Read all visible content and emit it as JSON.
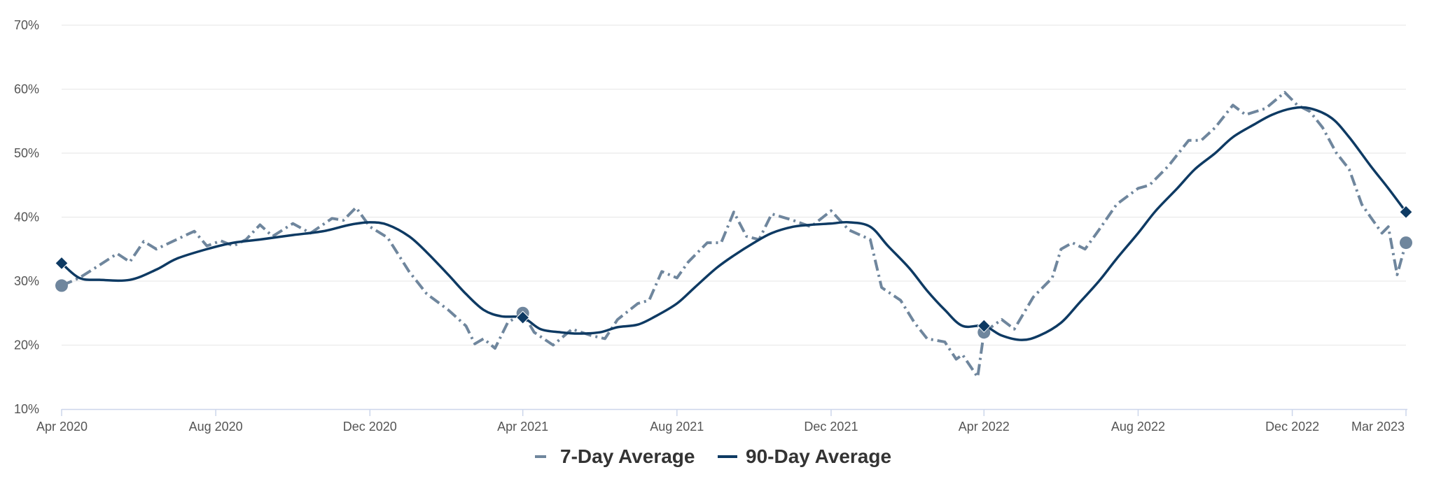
{
  "chart_data": {
    "type": "line",
    "title": "",
    "xlabel": "",
    "ylabel": "",
    "y_unit": "%",
    "ylim": [
      10,
      70
    ],
    "y_ticks": [
      {
        "value": 10,
        "label": "10%"
      },
      {
        "value": 20,
        "label": "20%"
      },
      {
        "value": 30,
        "label": "30%"
      },
      {
        "value": 40,
        "label": "40%"
      },
      {
        "value": 50,
        "label": "50%"
      },
      {
        "value": 60,
        "label": "60%"
      },
      {
        "value": 70,
        "label": "70%"
      }
    ],
    "xlim": [
      "2020-04-01",
      "2023-03-01"
    ],
    "x_ticks": [
      {
        "value": "2020-04-01",
        "label": "Apr 2020"
      },
      {
        "value": "2020-08-01",
        "label": "Aug 2020"
      },
      {
        "value": "2020-12-01",
        "label": "Dec 2020"
      },
      {
        "value": "2021-04-01",
        "label": "Apr 2021"
      },
      {
        "value": "2021-08-01",
        "label": "Aug 2021"
      },
      {
        "value": "2021-12-01",
        "label": "Dec 2021"
      },
      {
        "value": "2022-04-01",
        "label": "Apr 2022"
      },
      {
        "value": "2022-08-01",
        "label": "Aug 2022"
      },
      {
        "value": "2022-12-01",
        "label": "Dec 2022"
      },
      {
        "value": "2023-03-01",
        "label": "Mar 2023"
      }
    ],
    "grid": true,
    "legend_position": "bottom-center",
    "series": [
      {
        "name": "7-Day Average",
        "color": "#6f869d",
        "line_style": "dashed",
        "marker": "circle",
        "points": [
          [
            "2020-04-01",
            29.3
          ],
          [
            "2020-04-15",
            30.5
          ],
          [
            "2020-05-01",
            32.5
          ],
          [
            "2020-05-15",
            34.3
          ],
          [
            "2020-05-25",
            33.0
          ],
          [
            "2020-06-05",
            36.2
          ],
          [
            "2020-06-15",
            35.0
          ],
          [
            "2020-07-01",
            36.5
          ],
          [
            "2020-07-15",
            37.8
          ],
          [
            "2020-07-25",
            35.5
          ],
          [
            "2020-08-05",
            36.3
          ],
          [
            "2020-08-15",
            35.5
          ],
          [
            "2020-08-25",
            36.5
          ],
          [
            "2020-09-05",
            38.8
          ],
          [
            "2020-09-15",
            37.0
          ],
          [
            "2020-10-01",
            39.0
          ],
          [
            "2020-10-15",
            37.5
          ],
          [
            "2020-11-01",
            39.8
          ],
          [
            "2020-11-10",
            39.5
          ],
          [
            "2020-11-20",
            41.5
          ],
          [
            "2020-12-01",
            38.5
          ],
          [
            "2020-12-15",
            36.8
          ],
          [
            "2021-01-01",
            31.5
          ],
          [
            "2021-01-15",
            28.0
          ],
          [
            "2021-02-01",
            25.5
          ],
          [
            "2021-02-15",
            23.0
          ],
          [
            "2021-02-22",
            20.2
          ],
          [
            "2021-03-01",
            21.0
          ],
          [
            "2021-03-10",
            19.5
          ],
          [
            "2021-03-20",
            23.5
          ],
          [
            "2021-04-01",
            25.0
          ],
          [
            "2021-04-10",
            22.0
          ],
          [
            "2021-04-25",
            20.0
          ],
          [
            "2021-05-10",
            22.5
          ],
          [
            "2021-05-25",
            21.5
          ],
          [
            "2021-06-05",
            21.0
          ],
          [
            "2021-06-15",
            24.0
          ],
          [
            "2021-07-01",
            26.5
          ],
          [
            "2021-07-10",
            27.0
          ],
          [
            "2021-07-20",
            31.5
          ],
          [
            "2021-08-01",
            30.5
          ],
          [
            "2021-08-10",
            33.0
          ],
          [
            "2021-08-25",
            36.0
          ],
          [
            "2021-09-05",
            36.0
          ],
          [
            "2021-09-15",
            40.8
          ],
          [
            "2021-09-25",
            37.0
          ],
          [
            "2021-10-05",
            36.5
          ],
          [
            "2021-10-15",
            40.5
          ],
          [
            "2021-11-01",
            39.5
          ],
          [
            "2021-11-15",
            38.5
          ],
          [
            "2021-12-01",
            41.0
          ],
          [
            "2021-12-15",
            38.0
          ],
          [
            "2022-01-01",
            36.5
          ],
          [
            "2022-01-10",
            29.0
          ],
          [
            "2022-01-25",
            27.0
          ],
          [
            "2022-02-05",
            23.5
          ],
          [
            "2022-02-15",
            21.0
          ],
          [
            "2022-03-01",
            20.5
          ],
          [
            "2022-03-10",
            17.8
          ],
          [
            "2022-03-15",
            18.5
          ],
          [
            "2022-03-27",
            15.0
          ],
          [
            "2022-04-01",
            22.0
          ],
          [
            "2022-04-15",
            24.0
          ],
          [
            "2022-04-25",
            22.5
          ],
          [
            "2022-05-10",
            27.5
          ],
          [
            "2022-05-25",
            30.5
          ],
          [
            "2022-06-01",
            35.0
          ],
          [
            "2022-06-10",
            36.0
          ],
          [
            "2022-06-20",
            35.0
          ],
          [
            "2022-07-01",
            38.0
          ],
          [
            "2022-07-15",
            42.0
          ],
          [
            "2022-08-01",
            44.5
          ],
          [
            "2022-08-10",
            45.0
          ],
          [
            "2022-08-25",
            48.0
          ],
          [
            "2022-09-10",
            52.0
          ],
          [
            "2022-09-20",
            52.0
          ],
          [
            "2022-10-01",
            54.0
          ],
          [
            "2022-10-15",
            57.5
          ],
          [
            "2022-10-25",
            56.0
          ],
          [
            "2022-11-10",
            57.0
          ],
          [
            "2022-11-25",
            59.5
          ],
          [
            "2022-12-05",
            57.5
          ],
          [
            "2022-12-15",
            56.5
          ],
          [
            "2022-12-25",
            54.0
          ],
          [
            "2023-01-05",
            50.0
          ],
          [
            "2023-01-15",
            47.5
          ],
          [
            "2023-01-25",
            42.0
          ],
          [
            "2023-02-01",
            40.0
          ],
          [
            "2023-02-10",
            37.5
          ],
          [
            "2023-02-15",
            38.5
          ],
          [
            "2023-02-22",
            31.0
          ],
          [
            "2023-03-01",
            36.0
          ]
        ]
      },
      {
        "name": "90-Day Average",
        "color": "#0e3a63",
        "line_style": "solid",
        "marker": "diamond",
        "points": [
          [
            "2020-04-01",
            32.8
          ],
          [
            "2020-04-15",
            30.5
          ],
          [
            "2020-05-01",
            30.2
          ],
          [
            "2020-05-25",
            30.2
          ],
          [
            "2020-06-15",
            31.8
          ],
          [
            "2020-07-01",
            33.5
          ],
          [
            "2020-07-25",
            35.0
          ],
          [
            "2020-08-15",
            36.0
          ],
          [
            "2020-09-05",
            36.5
          ],
          [
            "2020-10-01",
            37.2
          ],
          [
            "2020-10-25",
            37.8
          ],
          [
            "2020-11-15",
            38.8
          ],
          [
            "2020-12-01",
            39.2
          ],
          [
            "2020-12-15",
            38.8
          ],
          [
            "2021-01-01",
            37.0
          ],
          [
            "2021-01-15",
            34.5
          ],
          [
            "2021-02-01",
            31.0
          ],
          [
            "2021-02-15",
            28.0
          ],
          [
            "2021-03-01",
            25.5
          ],
          [
            "2021-03-15",
            24.5
          ],
          [
            "2021-04-01",
            24.3
          ],
          [
            "2021-04-15",
            22.5
          ],
          [
            "2021-05-01",
            22.0
          ],
          [
            "2021-05-15",
            21.8
          ],
          [
            "2021-06-01",
            22.0
          ],
          [
            "2021-06-15",
            22.8
          ],
          [
            "2021-07-01",
            23.2
          ],
          [
            "2021-07-15",
            24.5
          ],
          [
            "2021-08-01",
            26.5
          ],
          [
            "2021-08-15",
            29.0
          ],
          [
            "2021-09-01",
            32.0
          ],
          [
            "2021-09-15",
            34.0
          ],
          [
            "2021-10-01",
            36.0
          ],
          [
            "2021-10-15",
            37.5
          ],
          [
            "2021-11-01",
            38.5
          ],
          [
            "2021-11-15",
            38.8
          ],
          [
            "2021-12-01",
            39.0
          ],
          [
            "2021-12-15",
            39.2
          ],
          [
            "2022-01-01",
            38.5
          ],
          [
            "2022-01-15",
            35.5
          ],
          [
            "2022-02-01",
            32.0
          ],
          [
            "2022-02-15",
            28.5
          ],
          [
            "2022-03-01",
            25.5
          ],
          [
            "2022-03-15",
            23.0
          ],
          [
            "2022-04-01",
            23.0
          ],
          [
            "2022-04-15",
            21.5
          ],
          [
            "2022-05-01",
            20.8
          ],
          [
            "2022-05-15",
            21.5
          ],
          [
            "2022-06-01",
            23.5
          ],
          [
            "2022-06-15",
            26.5
          ],
          [
            "2022-07-01",
            30.0
          ],
          [
            "2022-07-15",
            33.5
          ],
          [
            "2022-08-01",
            37.5
          ],
          [
            "2022-08-15",
            41.0
          ],
          [
            "2022-09-01",
            44.5
          ],
          [
            "2022-09-15",
            47.5
          ],
          [
            "2022-10-01",
            50.0
          ],
          [
            "2022-10-15",
            52.5
          ],
          [
            "2022-11-01",
            54.5
          ],
          [
            "2022-11-15",
            56.0
          ],
          [
            "2022-12-01",
            57.0
          ],
          [
            "2022-12-15",
            57.0
          ],
          [
            "2023-01-01",
            55.5
          ],
          [
            "2023-01-15",
            52.5
          ],
          [
            "2023-02-01",
            48.0
          ],
          [
            "2023-02-15",
            44.5
          ],
          [
            "2023-03-01",
            40.8
          ]
        ]
      }
    ],
    "highlighted_points": [
      {
        "series": "7-Day Average",
        "x": "2020-04-01",
        "y": 29.3
      },
      {
        "series": "7-Day Average",
        "x": "2021-04-01",
        "y": 25.0
      },
      {
        "series": "7-Day Average",
        "x": "2022-04-01",
        "y": 22.0
      },
      {
        "series": "7-Day Average",
        "x": "2023-03-01",
        "y": 36.0
      },
      {
        "series": "90-Day Average",
        "x": "2020-04-01",
        "y": 32.8
      },
      {
        "series": "90-Day Average",
        "x": "2021-04-01",
        "y": 24.3
      },
      {
        "series": "90-Day Average",
        "x": "2022-04-01",
        "y": 23.0
      },
      {
        "series": "90-Day Average",
        "x": "2023-03-01",
        "y": 40.8
      }
    ]
  },
  "legend": {
    "items": [
      {
        "label": "7-Day Average",
        "color": "#6f869d",
        "style": "dashed"
      },
      {
        "label": "90-Day Average",
        "color": "#0e3a63",
        "style": "solid"
      }
    ]
  },
  "colors": {
    "grid": "#e6e6e6",
    "axis": "#ccd6eb",
    "tick_text": "#555555"
  }
}
